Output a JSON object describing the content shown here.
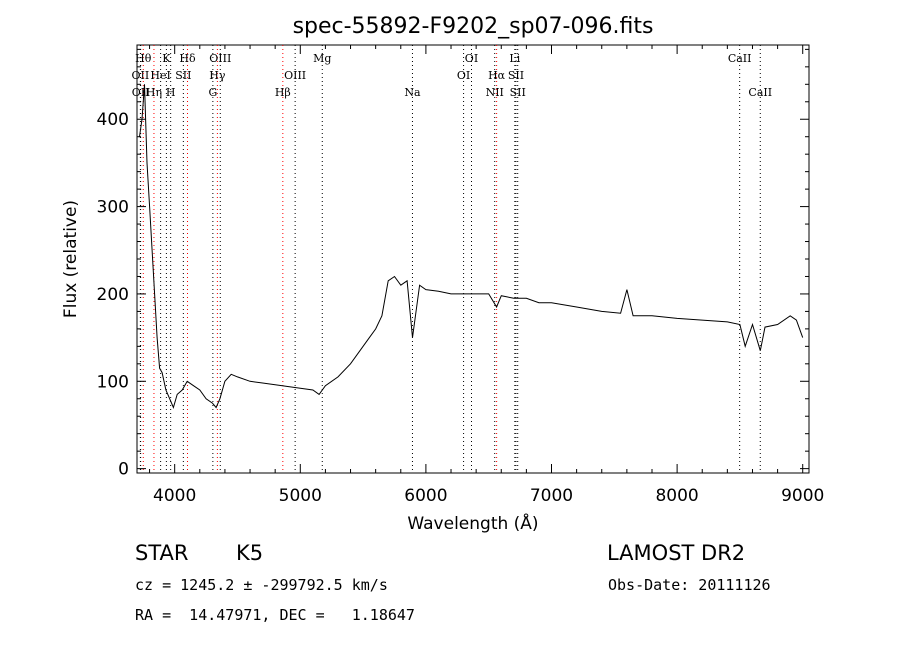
{
  "chart_data": {
    "type": "line",
    "title": "spec-55892-F9202_sp07-096.fits",
    "xlabel": "Wavelength (Å)",
    "ylabel": "Flux (relative)",
    "xlim": [
      3700,
      9050
    ],
    "ylim": [
      -5,
      485
    ],
    "xticks": [
      4000,
      5000,
      6000,
      7000,
      8000,
      9000
    ],
    "yticks": [
      0,
      100,
      200,
      300,
      400
    ],
    "grid": false,
    "series": [
      {
        "x": [
          3720,
          3740,
          3760,
          3780,
          3800,
          3820,
          3840,
          3860,
          3880,
          3900,
          3930,
          3960,
          3990,
          4020,
          4060,
          4100,
          4150,
          4200,
          4250,
          4300,
          4330,
          4360,
          4400,
          4450,
          4500,
          4600,
          4700,
          4800,
          4900,
          5000,
          5100,
          5150,
          5200,
          5300,
          5400,
          5500,
          5550,
          5600,
          5650,
          5700,
          5750,
          5800,
          5850,
          5893,
          5950,
          6000,
          6100,
          6200,
          6300,
          6400,
          6500,
          6563,
          6600,
          6700,
          6800,
          6900,
          7000,
          7200,
          7400,
          7550,
          7600,
          7650,
          7800,
          8000,
          8200,
          8400,
          8500,
          8542,
          8600,
          8662,
          8700,
          8800,
          8900,
          8950,
          9000
        ],
        "values": [
          380,
          400,
          440,
          350,
          300,
          250,
          200,
          150,
          115,
          110,
          90,
          80,
          70,
          85,
          90,
          100,
          95,
          90,
          80,
          75,
          70,
          80,
          100,
          108,
          105,
          100,
          98,
          96,
          94,
          92,
          90,
          85,
          95,
          105,
          120,
          140,
          150,
          160,
          175,
          215,
          220,
          210,
          215,
          150,
          210,
          205,
          203,
          200,
          200,
          200,
          200,
          185,
          198,
          195,
          195,
          190,
          190,
          185,
          180,
          178,
          205,
          175,
          175,
          172,
          170,
          168,
          165,
          140,
          165,
          135,
          162,
          165,
          175,
          170,
          150
        ]
      }
    ],
    "lines": [
      {
        "label": "OII",
        "x": 3727,
        "row": 1
      },
      {
        "label": "OII",
        "x": 3729,
        "row": 2
      },
      {
        "label": "Hθ",
        "x": 3750,
        "row": 0
      },
      {
        "label": "Hη",
        "x": 3835,
        "row": 2
      },
      {
        "label": "HeI",
        "x": 3888,
        "row": 1
      },
      {
        "label": "K",
        "x": 3934,
        "row": 0
      },
      {
        "label": "H",
        "x": 3968,
        "row": 2
      },
      {
        "label": "SII",
        "x": 4069,
        "row": 1
      },
      {
        "label": "Hδ",
        "x": 4102,
        "row": 0
      },
      {
        "label": "G",
        "x": 4304,
        "row": 2
      },
      {
        "label": "Hγ",
        "x": 4340,
        "row": 1
      },
      {
        "label": "OIII",
        "x": 4363,
        "row": 0
      },
      {
        "label": "Hβ",
        "x": 4861,
        "row": 2
      },
      {
        "label": "OIII",
        "x": 4959,
        "row": 1
      },
      {
        "label": "Mg",
        "x": 5175,
        "row": 0
      },
      {
        "label": "Na",
        "x": 5893,
        "row": 2
      },
      {
        "label": "OI",
        "x": 6300,
        "row": 1
      },
      {
        "label": "OI",
        "x": 6363,
        "row": 0
      },
      {
        "label": "NII",
        "x": 6548,
        "row": 2
      },
      {
        "label": "Hα",
        "x": 6563,
        "row": 1
      },
      {
        "label": "Li",
        "x": 6708,
        "row": 0
      },
      {
        "label": "SII",
        "x": 6717,
        "row": 1
      },
      {
        "label": "SII",
        "x": 6731,
        "row": 2
      },
      {
        "label": "CaII",
        "x": 8498,
        "row": 0
      },
      {
        "label": "CaII",
        "x": 8662,
        "row": 2
      }
    ],
    "colors": {
      "spectrum": "#000000",
      "balmer": "#ff0000",
      "other": "#000000"
    },
    "balmer": [
      "Hθ",
      "Hη",
      "Hδ",
      "Hγ",
      "Hβ",
      "Hα"
    ]
  },
  "info": {
    "class_label": "STAR",
    "subclass": "K5",
    "survey": "LAMOST DR2",
    "cz": "cz = 1245.2 ± -299792.5 km/s",
    "obs_date": "Obs-Date: 20111126",
    "coords": "RA =  14.47971, DEC =   1.18647"
  }
}
